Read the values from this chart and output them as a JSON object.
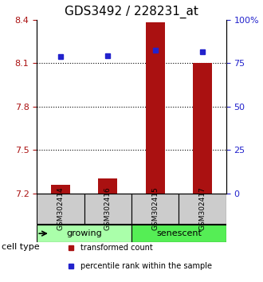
{
  "title": "GDS3492 / 228231_at",
  "samples": [
    "GSM302414",
    "GSM302416",
    "GSM302415",
    "GSM302417"
  ],
  "transformed_counts": [
    7.258,
    7.305,
    8.38,
    8.1
  ],
  "percentile_ranks": [
    79.0,
    79.5,
    82.5,
    81.5
  ],
  "ylim_left": [
    7.2,
    8.4
  ],
  "ylim_right": [
    0,
    100
  ],
  "yticks_left": [
    7.2,
    7.5,
    7.8,
    8.1,
    8.4
  ],
  "yticks_right": [
    0,
    25,
    50,
    75,
    100
  ],
  "ytick_labels_right": [
    "0",
    "25",
    "50",
    "75",
    "100%"
  ],
  "cell_types": [
    {
      "label": "growing",
      "samples": [
        0,
        1
      ],
      "color": "#aaffaa"
    },
    {
      "label": "senescent",
      "samples": [
        2,
        3
      ],
      "color": "#55ee55"
    }
  ],
  "bar_color": "#aa1111",
  "marker_color": "#2222cc",
  "bar_width": 0.4,
  "background_color": "#ffffff",
  "sample_box_color": "#cccccc",
  "title_fontsize": 11,
  "tick_fontsize": 8,
  "cell_type_label": "cell type",
  "legend_items": [
    {
      "color": "#aa1111",
      "marker": "s",
      "label": "transformed count"
    },
    {
      "color": "#2222cc",
      "marker": "s",
      "label": "percentile rank within the sample"
    }
  ]
}
